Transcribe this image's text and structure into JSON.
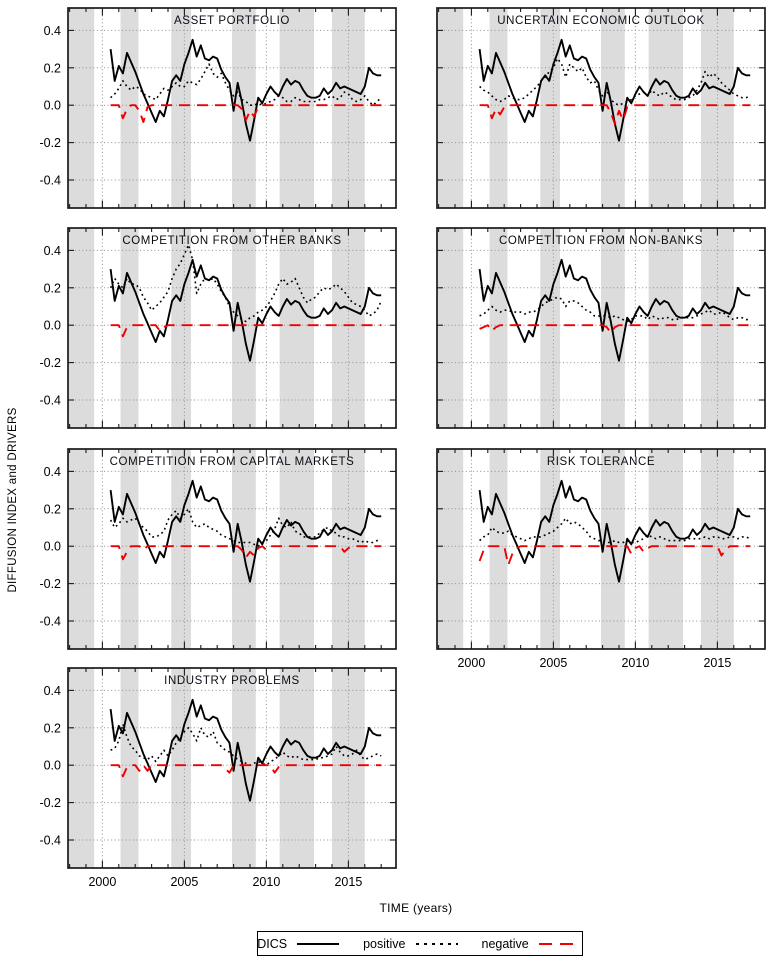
{
  "figure": {
    "y_axis_label": "DIFFUSION INDEX and DRIVERS",
    "x_axis_label": "TIME (years)",
    "legend": [
      {
        "label": "DICS",
        "line": "solid",
        "color": "#000000"
      },
      {
        "label": "positive",
        "line": "dotted",
        "color": "#000000"
      },
      {
        "label": "negative",
        "line": "dashed",
        "color": "#ee0000"
      }
    ]
  },
  "chart_data": {
    "type": "line",
    "layout": "7 small-multiple panels, 2 columns (left column 4 rows, right column 3 rows)",
    "x_unit": "year (quarterly survey observations)",
    "xlim": [
      1997.9,
      2017.9
    ],
    "ylim": [
      -0.55,
      0.52
    ],
    "grid": true,
    "x_tick_values": [
      2000,
      2005,
      2010,
      2015
    ],
    "x_tick_labels": [
      "2000",
      "2005",
      "2010",
      "2015"
    ],
    "minor_x_ticks_every_year": true,
    "y_tick_values": [
      0.4,
      0.2,
      0,
      -0.2,
      -0.4
    ],
    "y_tick_labels": [
      "0.4",
      "0.2",
      "0.0",
      "-0.2",
      "-0.4"
    ],
    "legend_position": "bottom center, boxed",
    "shaded_bands_years": [
      [
        1997.9,
        1999.5
      ],
      [
        2001.1,
        2002.2
      ],
      [
        2004.2,
        2005.4
      ],
      [
        2007.9,
        2009.35
      ],
      [
        2010.8,
        2012.9
      ],
      [
        2014.0,
        2016.0
      ]
    ],
    "colors": {
      "band": "#dcdcdc",
      "grid": "#8f8f8f",
      "dics": "#000000",
      "positive": "#000000",
      "negative": "#ee0000"
    },
    "x": [
      2000.5,
      2000.75,
      2001,
      2001.25,
      2001.5,
      2001.75,
      2002,
      2002.25,
      2002.5,
      2002.75,
      2003,
      2003.25,
      2003.5,
      2003.75,
      2004,
      2004.25,
      2004.5,
      2004.75,
      2005,
      2005.25,
      2005.5,
      2005.75,
      2006,
      2006.25,
      2006.5,
      2006.75,
      2007,
      2007.25,
      2007.5,
      2007.75,
      2008,
      2008.25,
      2008.5,
      2008.75,
      2009,
      2009.25,
      2009.5,
      2009.75,
      2010,
      2010.25,
      2010.5,
      2010.75,
      2011,
      2011.25,
      2011.5,
      2011.75,
      2012,
      2012.25,
      2012.5,
      2012.75,
      2013,
      2013.25,
      2013.5,
      2013.75,
      2014,
      2014.25,
      2014.5,
      2014.75,
      2015,
      2015.25,
      2015.5,
      2015.75,
      2016,
      2016.25,
      2016.5,
      2016.75,
      2017
    ],
    "dics": [
      0.3,
      0.13,
      0.21,
      0.17,
      0.28,
      0.23,
      0.18,
      0.12,
      0.06,
      0.01,
      -0.04,
      -0.09,
      -0.03,
      -0.06,
      0.03,
      0.13,
      0.16,
      0.13,
      0.22,
      0.28,
      0.35,
      0.26,
      0.32,
      0.25,
      0.24,
      0.26,
      0.25,
      0.19,
      0.15,
      0.12,
      -0.03,
      0.12,
      0.02,
      -0.1,
      -0.19,
      -0.08,
      0.04,
      0.01,
      0.06,
      0.1,
      0.07,
      0.05,
      0.1,
      0.14,
      0.11,
      0.13,
      0.12,
      0.08,
      0.05,
      0.04,
      0.04,
      0.05,
      0.09,
      0.06,
      0.08,
      0.12,
      0.09,
      0.1,
      0.09,
      0.08,
      0.07,
      0.06,
      0.1,
      0.2,
      0.17,
      0.16,
      0.16
    ],
    "panels": [
      {
        "title": "ASSET PORTFOLIO",
        "positive": [
          0.04,
          0.06,
          0.09,
          0.13,
          0.1,
          0.08,
          0.1,
          0.09,
          0.06,
          0.05,
          0.04,
          0.03,
          0.06,
          0.09,
          0.08,
          0.1,
          0.12,
          0.1,
          0.1,
          0.13,
          0.12,
          0.11,
          0.14,
          0.18,
          0.22,
          0.17,
          0.15,
          0.17,
          0.12,
          0.08,
          0.05,
          0.07,
          0.03,
          0.02,
          0.0,
          0.0,
          0.01,
          0.0,
          0.01,
          0.02,
          0.03,
          0.05,
          0.04,
          0.02,
          0.02,
          0.04,
          0.03,
          0.02,
          0.02,
          0.02,
          0.02,
          0.03,
          0.03,
          0.04,
          0.05,
          0.03,
          0.04,
          0.07,
          0.06,
          0.03,
          0.02,
          0.03,
          0.05,
          0.02,
          0.0,
          0.02,
          0.04
        ],
        "negative_dips": {
          "2001.25": -0.07,
          "2001.5": -0.02,
          "2002.25": -0.03,
          "2002.5": -0.09,
          "2002.75": -0.01,
          "2008.5": -0.02,
          "2008.75": -0.08,
          "2009": -0.03,
          "2009.25": -0.06,
          "2009.5": -0.01
        }
      },
      {
        "title": "UNCERTAIN ECONOMIC OUTLOOK",
        "positive": [
          0.1,
          0.08,
          0.07,
          0.05,
          0.03,
          0.02,
          0.03,
          0.05,
          0.04,
          0.03,
          0.03,
          0.04,
          0.06,
          0.08,
          0.1,
          0.13,
          0.15,
          0.18,
          0.2,
          0.25,
          0.22,
          0.15,
          0.22,
          0.2,
          0.18,
          0.2,
          0.15,
          0.12,
          0.13,
          0.08,
          0.05,
          0.08,
          0.03,
          0.01,
          0.0,
          0.01,
          0.02,
          0.03,
          0.05,
          0.06,
          0.07,
          0.05,
          0.08,
          0.06,
          0.05,
          0.07,
          0.06,
          0.04,
          0.03,
          0.03,
          0.03,
          0.04,
          0.05,
          0.08,
          0.12,
          0.18,
          0.15,
          0.17,
          0.15,
          0.12,
          0.1,
          0.08,
          0.06,
          0.05,
          0.04,
          0.04,
          0.05
        ],
        "negative_dips": {
          "2001.25": -0.07,
          "2001.5": -0.02,
          "2001.75": -0.05,
          "2002": -0.01,
          "2008.5": -0.04,
          "2008.75": -0.1,
          "2009": -0.03,
          "2009.25": -0.08,
          "2009.5": -0.01
        }
      },
      {
        "title": "COMPETITION FROM OTHER BANKS",
        "positive": [
          0.2,
          0.25,
          0.22,
          0.2,
          0.25,
          0.22,
          0.22,
          0.2,
          0.15,
          0.12,
          0.08,
          0.1,
          0.12,
          0.15,
          0.18,
          0.25,
          0.3,
          0.33,
          0.38,
          0.43,
          0.35,
          0.17,
          0.22,
          0.25,
          0.24,
          0.25,
          0.22,
          0.18,
          0.15,
          0.1,
          0.07,
          0.05,
          0.03,
          0.02,
          0.04,
          0.05,
          0.07,
          0.08,
          0.1,
          0.13,
          0.17,
          0.22,
          0.25,
          0.22,
          0.23,
          0.25,
          0.2,
          0.15,
          0.12,
          0.14,
          0.15,
          0.18,
          0.2,
          0.19,
          0.2,
          0.22,
          0.2,
          0.18,
          0.15,
          0.12,
          0.11,
          0.1,
          0.08,
          0.05,
          0.06,
          0.08,
          0.13
        ],
        "negative_dips": {
          "2001.25": -0.06,
          "2001.5": -0.01,
          "2003.5": -0.03,
          "2003.75": -0.01
        }
      },
      {
        "title": "COMPETITION FROM NON-BANKS",
        "positive": [
          0.05,
          0.06,
          0.08,
          0.1,
          0.08,
          0.07,
          0.08,
          0.08,
          0.07,
          0.07,
          0.07,
          0.06,
          0.07,
          0.07,
          0.08,
          0.1,
          0.12,
          0.13,
          0.14,
          0.15,
          0.14,
          0.1,
          0.13,
          0.13,
          0.12,
          0.1,
          0.08,
          0.07,
          0.05,
          0.05,
          0.05,
          0.05,
          0.04,
          0.05,
          0.04,
          0.03,
          0.02,
          0.03,
          0.05,
          0.05,
          0.05,
          0.03,
          0.05,
          0.04,
          0.03,
          0.04,
          0.04,
          0.03,
          0.03,
          0.04,
          0.04,
          0.04,
          0.04,
          0.05,
          0.06,
          0.07,
          0.08,
          0.06,
          0.06,
          0.07,
          0.06,
          0.04,
          0.03,
          0.04,
          0.04,
          0.03,
          0.03
        ],
        "negative_dips": {
          "2000.5": -0.02,
          "2000.75": -0.01,
          "2001.25": -0.03,
          "2001.5": -0.01,
          "2008.25": -0.01,
          "2008.5": -0.04,
          "2008.75": -0.01
        }
      },
      {
        "title": "COMPETITION FROM CAPITAL MARKETS",
        "positive": [
          0.14,
          0.1,
          0.12,
          0.15,
          0.13,
          0.14,
          0.15,
          0.12,
          0.1,
          0.08,
          0.05,
          0.05,
          0.06,
          0.08,
          0.14,
          0.17,
          0.19,
          0.15,
          0.17,
          0.2,
          0.13,
          0.1,
          0.11,
          0.12,
          0.1,
          0.09,
          0.08,
          0.06,
          0.05,
          0.04,
          0.03,
          0.02,
          0.02,
          0.02,
          0.02,
          0.01,
          0.0,
          0.02,
          0.03,
          0.06,
          0.09,
          0.15,
          0.11,
          0.1,
          0.13,
          0.08,
          0.07,
          0.05,
          0.05,
          0.05,
          0.05,
          0.07,
          0.09,
          0.1,
          0.08,
          0.07,
          0.05,
          0.05,
          0.04,
          0.04,
          0.03,
          0.02,
          0.03,
          0.02,
          0.02,
          0.03,
          0.03
        ],
        "negative_dips": {
          "2001.25": -0.07,
          "2001.5": -0.03,
          "2002.5": -0.02,
          "2008.5": -0.02,
          "2008.75": -0.06,
          "2009": -0.03,
          "2009.25": -0.05,
          "2009.5": -0.01,
          "2010": -0.02,
          "2014.75": -0.03,
          "2015": -0.01
        }
      },
      {
        "title": "RISK TOLERANCE",
        "positive": [
          0.03,
          0.05,
          0.06,
          0.1,
          0.08,
          0.07,
          0.07,
          0.08,
          0.06,
          0.05,
          0.04,
          0.03,
          0.04,
          0.05,
          0.05,
          0.05,
          0.06,
          0.07,
          0.08,
          0.1,
          0.12,
          0.15,
          0.12,
          0.13,
          0.12,
          0.1,
          0.08,
          0.05,
          0.04,
          0.03,
          0.03,
          0.02,
          0.02,
          0.03,
          0.02,
          0.02,
          0.03,
          0.02,
          0.02,
          0.03,
          0.04,
          0.06,
          0.05,
          0.04,
          0.05,
          0.04,
          0.03,
          0.03,
          0.03,
          0.03,
          0.03,
          0.04,
          0.04,
          0.04,
          0.04,
          0.05,
          0.04,
          0.05,
          0.05,
          0.04,
          0.04,
          0.05,
          0.05,
          0.04,
          0.05,
          0.05,
          0.04
        ],
        "negative_dips": {
          "2000.5": -0.08,
          "2000.75": -0.02,
          "2002.25": -0.1,
          "2002.5": -0.04,
          "2002.75": -0.01,
          "2009.75": -0.04,
          "2010": -0.01,
          "2010.5": -0.03,
          "2010.75": -0.01,
          "2015.25": -0.05,
          "2015.5": -0.02
        }
      },
      {
        "title": "INDUSTRY PROBLEMS",
        "positive": [
          0.08,
          0.09,
          0.13,
          0.22,
          0.15,
          0.1,
          0.08,
          0.05,
          0.04,
          0.03,
          0.05,
          0.02,
          0.05,
          0.08,
          0.05,
          0.08,
          0.12,
          0.15,
          0.18,
          0.2,
          0.17,
          0.13,
          0.2,
          0.16,
          0.15,
          0.18,
          0.12,
          0.1,
          0.08,
          0.07,
          0.05,
          0.03,
          0.02,
          0.01,
          0.0,
          0.01,
          0.02,
          0.01,
          0.0,
          0.02,
          0.03,
          0.05,
          0.07,
          0.05,
          0.04,
          0.05,
          0.04,
          0.03,
          0.03,
          0.03,
          0.03,
          0.04,
          0.04,
          0.05,
          0.06,
          0.1,
          0.07,
          0.05,
          0.05,
          0.06,
          0.08,
          0.05,
          0.03,
          0.04,
          0.05,
          0.06,
          0.05
        ],
        "negative_dips": {
          "2001.25": -0.06,
          "2001.5": -0.01,
          "2002.25": -0.03,
          "2002.75": -0.03,
          "2007.5": -0.02,
          "2007.75": -0.04,
          "2010.5": -0.04,
          "2010.75": -0.01
        }
      }
    ]
  }
}
